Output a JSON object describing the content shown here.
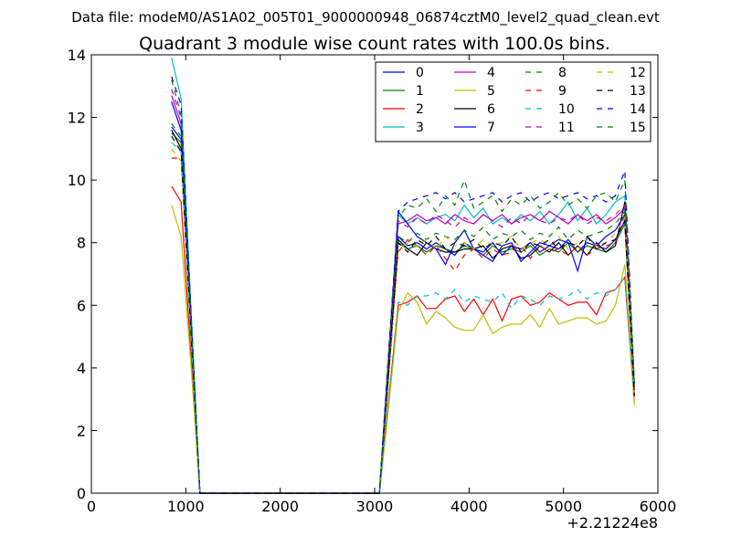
{
  "chart_data": {
    "type": "line",
    "suptitle": "Data file: modeM0/AS1A02_005T01_9000000948_06874cztM0_level2_quad_clean.evt",
    "title": "Quadrant 3 module wise count rates with 100.0s bins.",
    "xlabel": "",
    "ylabel": "",
    "x_offset_label": "+2.21224e8",
    "xlim": [
      0,
      6000
    ],
    "ylim": [
      0,
      14
    ],
    "xticks": [
      0,
      1000,
      2000,
      3000,
      4000,
      5000,
      6000
    ],
    "yticks": [
      0,
      2,
      4,
      6,
      8,
      10,
      12,
      14
    ],
    "grid": false,
    "legend_position": "top-right",
    "x": [
      850,
      950,
      1050,
      1150,
      1250,
      1350,
      1450,
      1550,
      1650,
      1750,
      1850,
      1950,
      2050,
      2150,
      2250,
      2350,
      2450,
      2550,
      2650,
      2750,
      2850,
      2950,
      3050,
      3150,
      3250,
      3350,
      3450,
      3550,
      3650,
      3750,
      3850,
      3950,
      4050,
      4150,
      4250,
      4350,
      4450,
      4550,
      4650,
      4750,
      4850,
      4950,
      5050,
      5150,
      5250,
      5350,
      5450,
      5550,
      5650,
      5750
    ],
    "series": [
      {
        "name": "0",
        "color": "#0000ff",
        "dash": "solid",
        "values": [
          11.7,
          11.3,
          5.5,
          0,
          0,
          0,
          0,
          0,
          0,
          0,
          0,
          0,
          0,
          0,
          0,
          0,
          0,
          0,
          0,
          0,
          0,
          0,
          0,
          4.0,
          8.2,
          7.9,
          8.0,
          7.8,
          8.0,
          7.8,
          7.6,
          8.0,
          7.8,
          7.7,
          8.0,
          7.6,
          7.9,
          7.8,
          8.0,
          7.7,
          7.9,
          7.8,
          8.1,
          7.7,
          8.0,
          7.9,
          7.8,
          8.1,
          8.7,
          3.2
        ]
      },
      {
        "name": "1",
        "color": "#008000",
        "dash": "solid",
        "values": [
          11.5,
          11.2,
          5.4,
          0,
          0,
          0,
          0,
          0,
          0,
          0,
          0,
          0,
          0,
          0,
          0,
          0,
          0,
          0,
          0,
          0,
          0,
          0,
          0,
          3.9,
          8.0,
          7.8,
          7.9,
          7.7,
          7.9,
          7.8,
          7.7,
          7.9,
          7.8,
          7.6,
          7.9,
          7.7,
          7.8,
          7.7,
          7.9,
          7.6,
          7.8,
          7.7,
          8.0,
          7.7,
          7.9,
          7.8,
          7.7,
          8.0,
          8.6,
          3.1
        ]
      },
      {
        "name": "2",
        "color": "#ff0000",
        "dash": "solid",
        "values": [
          9.8,
          9.3,
          4.6,
          0,
          0,
          0,
          0,
          0,
          0,
          0,
          0,
          0,
          0,
          0,
          0,
          0,
          0,
          0,
          0,
          0,
          0,
          0,
          0,
          3.0,
          6.0,
          6.1,
          6.3,
          5.9,
          5.9,
          6.2,
          6.3,
          5.8,
          6.2,
          5.7,
          6.2,
          5.5,
          6.2,
          6.3,
          6.0,
          6.1,
          6.4,
          6.2,
          6.0,
          6.1,
          6.1,
          5.7,
          6.4,
          6.5,
          6.9,
          2.9
        ]
      },
      {
        "name": "3",
        "color": "#00bfbf",
        "dash": "solid",
        "values": [
          13.9,
          12.6,
          6.2,
          0,
          0,
          0,
          0,
          0,
          0,
          0,
          0,
          0,
          0,
          0,
          0,
          0,
          0,
          0,
          0,
          0,
          0,
          0,
          0,
          4.5,
          8.9,
          8.6,
          8.8,
          8.6,
          8.8,
          8.9,
          8.7,
          9.2,
          8.8,
          9.1,
          8.6,
          8.8,
          8.6,
          8.9,
          8.7,
          9.0,
          8.6,
          8.9,
          9.3,
          8.7,
          9.1,
          8.6,
          8.9,
          9.3,
          9.5,
          3.5
        ]
      },
      {
        "name": "4",
        "color": "#bf00bf",
        "dash": "solid",
        "values": [
          12.7,
          11.8,
          5.8,
          0,
          0,
          0,
          0,
          0,
          0,
          0,
          0,
          0,
          0,
          0,
          0,
          0,
          0,
          0,
          0,
          0,
          0,
          0,
          0,
          4.3,
          8.6,
          8.7,
          8.9,
          8.7,
          8.8,
          8.6,
          8.9,
          8.7,
          8.6,
          8.9,
          8.7,
          8.9,
          8.6,
          8.8,
          8.9,
          8.7,
          9.0,
          8.8,
          8.6,
          8.9,
          8.7,
          8.9,
          8.6,
          8.8,
          9.1,
          3.4
        ]
      },
      {
        "name": "5",
        "color": "#bfbf00",
        "dash": "solid",
        "values": [
          9.2,
          8.2,
          4.3,
          0,
          0,
          0,
          0,
          0,
          0,
          0,
          0,
          0,
          0,
          0,
          0,
          0,
          0,
          0,
          0,
          0,
          0,
          0,
          0,
          2.8,
          5.8,
          6.4,
          6.1,
          5.4,
          5.8,
          5.6,
          5.3,
          5.2,
          5.2,
          5.7,
          5.1,
          5.3,
          5.4,
          5.4,
          5.7,
          5.3,
          5.9,
          5.4,
          5.5,
          5.6,
          5.6,
          5.4,
          5.5,
          6.0,
          7.3,
          2.8
        ]
      },
      {
        "name": "6",
        "color": "#000000",
        "dash": "solid",
        "values": [
          11.6,
          11.0,
          5.5,
          0,
          0,
          0,
          0,
          0,
          0,
          0,
          0,
          0,
          0,
          0,
          0,
          0,
          0,
          0,
          0,
          0,
          0,
          0,
          0,
          3.9,
          8.1,
          7.8,
          7.6,
          8.0,
          7.8,
          7.7,
          7.7,
          7.8,
          7.8,
          7.9,
          7.5,
          7.8,
          7.9,
          7.5,
          7.6,
          7.9,
          7.7,
          8.0,
          7.6,
          7.9,
          7.6,
          8.0,
          7.7,
          7.9,
          9.3,
          3.1
        ]
      },
      {
        "name": "7",
        "color": "#0000ff",
        "dash": "solid",
        "values": [
          12.5,
          11.6,
          5.7,
          0,
          0,
          0,
          0,
          0,
          0,
          0,
          0,
          0,
          0,
          0,
          0,
          0,
          0,
          0,
          0,
          0,
          0,
          0,
          0,
          4.4,
          9.0,
          8.6,
          8.2,
          8.0,
          7.8,
          7.3,
          8.0,
          8.4,
          7.8,
          7.6,
          7.4,
          7.9,
          8.0,
          7.4,
          7.7,
          8.0,
          7.9,
          8.1,
          8.0,
          7.1,
          8.2,
          7.9,
          8.2,
          8.4,
          8.9,
          3.3
        ]
      },
      {
        "name": "8",
        "color": "#008000",
        "dash": "dash",
        "values": [
          11.8,
          11.4,
          5.6,
          0,
          0,
          0,
          0,
          0,
          0,
          0,
          0,
          0,
          0,
          0,
          0,
          0,
          0,
          0,
          0,
          0,
          0,
          0,
          0,
          4.2,
          8.2,
          8.0,
          8.3,
          8.1,
          8.3,
          8.2,
          8.1,
          8.4,
          8.2,
          8.5,
          8.1,
          8.3,
          8.2,
          8.4,
          8.1,
          8.3,
          8.2,
          8.5,
          8.1,
          8.4,
          8.2,
          8.3,
          8.4,
          8.6,
          9.0,
          3.3
        ]
      },
      {
        "name": "9",
        "color": "#ff0000",
        "dash": "dash",
        "values": [
          10.7,
          10.7,
          5.2,
          0,
          0,
          0,
          0,
          0,
          0,
          0,
          0,
          0,
          0,
          0,
          0,
          0,
          0,
          0,
          0,
          0,
          0,
          0,
          0,
          3.8,
          7.7,
          8.1,
          7.9,
          7.6,
          7.9,
          7.5,
          7.1,
          7.6,
          7.8,
          7.5,
          7.8,
          7.6,
          7.7,
          7.9,
          7.5,
          7.9,
          7.7,
          7.8,
          7.6,
          7.9,
          7.6,
          7.8,
          7.9,
          8.0,
          8.9,
          3.2
        ]
      },
      {
        "name": "10",
        "color": "#00bfbf",
        "dash": "dash",
        "values": [
          11.2,
          10.9,
          5.3,
          0,
          0,
          0,
          0,
          0,
          0,
          0,
          0,
          0,
          0,
          0,
          0,
          0,
          0,
          0,
          0,
          0,
          0,
          0,
          0,
          3.1,
          6.1,
          6.0,
          6.3,
          6.3,
          6.4,
          6.2,
          6.5,
          6.1,
          6.3,
          6.2,
          6.1,
          6.4,
          5.9,
          6.3,
          6.2,
          6.0,
          6.3,
          6.2,
          6.3,
          6.5,
          6.2,
          6.4,
          6.3,
          6.5,
          6.9,
          3.0
        ]
      },
      {
        "name": "11",
        "color": "#bf00bf",
        "dash": "dash",
        "values": [
          12.9,
          12.0,
          5.9,
          0,
          0,
          0,
          0,
          0,
          0,
          0,
          0,
          0,
          0,
          0,
          0,
          0,
          0,
          0,
          0,
          0,
          0,
          0,
          0,
          4.4,
          8.7,
          8.5,
          8.8,
          8.6,
          8.9,
          8.7,
          8.5,
          8.8,
          8.6,
          8.9,
          8.7,
          8.5,
          8.8,
          8.6,
          8.9,
          8.7,
          8.6,
          8.8,
          8.7,
          8.9,
          8.6,
          8.8,
          8.7,
          8.9,
          9.2,
          3.4
        ]
      },
      {
        "name": "12",
        "color": "#bfbf00",
        "dash": "dash",
        "values": [
          11.0,
          10.6,
          5.2,
          0,
          0,
          0,
          0,
          0,
          0,
          0,
          0,
          0,
          0,
          0,
          0,
          0,
          0,
          0,
          0,
          0,
          0,
          0,
          0,
          3.8,
          7.8,
          8.0,
          7.9,
          8.1,
          7.8,
          8.2,
          7.9,
          8.0,
          7.8,
          8.1,
          7.9,
          8.0,
          8.2,
          7.8,
          8.0,
          8.1,
          7.9,
          8.2,
          7.8,
          8.0,
          8.1,
          7.9,
          8.0,
          8.3,
          8.8,
          3.2
        ]
      },
      {
        "name": "13",
        "color": "#000000",
        "dash": "dash",
        "values": [
          11.4,
          10.9,
          5.4,
          0,
          0,
          0,
          0,
          0,
          0,
          0,
          0,
          0,
          0,
          0,
          0,
          0,
          0,
          0,
          0,
          0,
          0,
          0,
          0,
          3.9,
          8.0,
          7.7,
          8.1,
          7.9,
          8.2,
          7.8,
          8.0,
          7.9,
          8.1,
          7.8,
          8.0,
          7.9,
          8.2,
          7.7,
          8.0,
          7.9,
          8.1,
          7.8,
          8.0,
          7.9,
          8.2,
          7.8,
          8.0,
          8.1,
          8.7,
          3.1
        ]
      },
      {
        "name": "14",
        "color": "#0000ff",
        "dash": "dash",
        "values": [
          13.3,
          12.4,
          6.1,
          0,
          0,
          0,
          0,
          0,
          0,
          0,
          0,
          0,
          0,
          0,
          0,
          0,
          0,
          0,
          0,
          0,
          0,
          0,
          0,
          4.6,
          9.0,
          9.3,
          9.4,
          9.5,
          9.6,
          9.4,
          9.6,
          9.3,
          9.4,
          9.5,
          9.6,
          9.3,
          9.5,
          9.6,
          9.3,
          9.5,
          9.6,
          9.4,
          9.5,
          9.6,
          9.4,
          9.5,
          9.3,
          9.5,
          10.3,
          3.5
        ]
      },
      {
        "name": "15",
        "color": "#008000",
        "dash": "dash",
        "values": [
          13.2,
          12.1,
          6.0,
          0,
          0,
          0,
          0,
          0,
          0,
          0,
          0,
          0,
          0,
          0,
          0,
          0,
          0,
          0,
          0,
          0,
          0,
          0,
          0,
          4.5,
          8.8,
          9.2,
          9.1,
          9.4,
          9.0,
          9.5,
          9.2,
          10.0,
          9.1,
          9.3,
          9.5,
          9.0,
          9.4,
          9.2,
          9.5,
          9.1,
          9.3,
          9.6,
          9.2,
          9.4,
          9.1,
          9.5,
          9.6,
          9.3,
          10.0,
          3.6
        ]
      }
    ]
  }
}
